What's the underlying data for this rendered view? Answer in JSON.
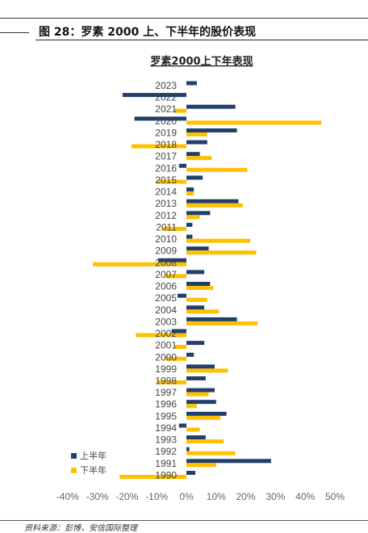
{
  "figure": {
    "title": "图 28：罗素 2000 上、下半年的股价表现",
    "source": "资料来源：彭博，安信国际整理"
  },
  "colors": {
    "h1": "#203F6B",
    "h2": "#FFC000"
  },
  "chart_data": {
    "type": "bar",
    "orientation": "horizontal",
    "title": "罗素2000上下年表现",
    "categories": [
      "2023",
      "2022",
      "2021",
      "2020",
      "2019",
      "2018",
      "2017",
      "2016",
      "2015",
      "2014",
      "2013",
      "2012",
      "2011",
      "2010",
      "2009",
      "2008",
      "2007",
      "2006",
      "2005",
      "2004",
      "2003",
      "2002",
      "2001",
      "2000",
      "1999",
      "1998",
      "1997",
      "1996",
      "1995",
      "1994",
      "1993",
      "1992",
      "1991",
      "1990"
    ],
    "series": [
      {
        "name": "上半年",
        "values": [
          3.5,
          -21.5,
          16.5,
          -17.5,
          17.0,
          7.0,
          4.5,
          -2.5,
          5.5,
          2.5,
          17.5,
          8.0,
          2.0,
          2.0,
          7.5,
          -9.5,
          6.0,
          8.0,
          -3.0,
          6.0,
          17.0,
          -5.0,
          6.0,
          2.5,
          9.5,
          6.5,
          9.5,
          10.0,
          13.5,
          -2.5,
          6.5,
          1.0,
          28.5,
          3.0
        ]
      },
      {
        "name": "下半年",
        "values": [
          0,
          0,
          -4.0,
          45.5,
          7.0,
          -18.5,
          8.5,
          20.5,
          -10.0,
          2.5,
          19.0,
          4.5,
          -8.0,
          21.5,
          23.5,
          -31.5,
          -7.0,
          9.0,
          7.0,
          11.0,
          24.0,
          -17.0,
          -4.0,
          -7.0,
          14.0,
          -10.0,
          7.5,
          3.5,
          11.5,
          4.5,
          12.5,
          16.5,
          10.0,
          -22.5
        ]
      }
    ],
    "x_ticks": [
      "-40%",
      "-30%",
      "-20%",
      "-10%",
      "0%",
      "10%",
      "20%",
      "30%",
      "40%",
      "50%"
    ],
    "xlim": [
      -40,
      50
    ],
    "grid": false,
    "legend_position": "bottom-left"
  }
}
